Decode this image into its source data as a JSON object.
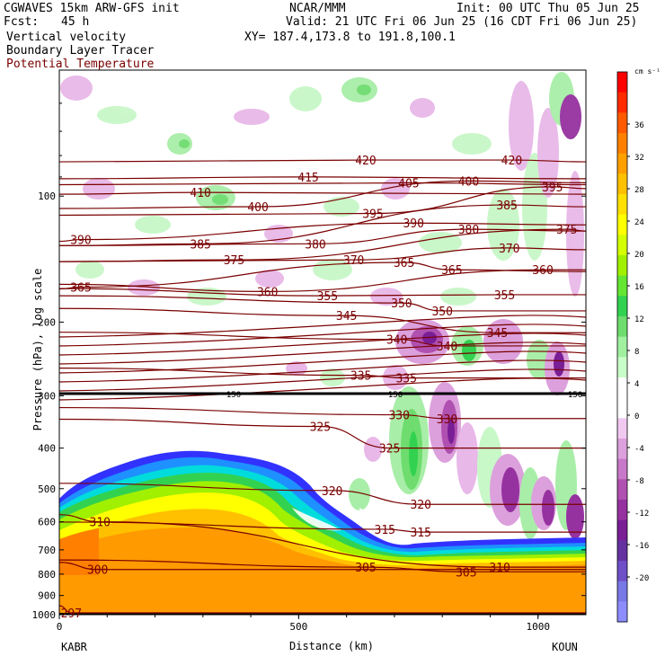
{
  "header": {
    "model": "CGWAVES 15km ARW-GFS init",
    "org": "NCAR/MMM",
    "init": "Init: 00 UTC Thu 05 Jun 25",
    "fcst_label": "Fcst:",
    "fcst_value": "45 h",
    "valid": "Valid: 21 UTC Fri 06 Jun 25 (16 CDT Fri 06 Jun 25)",
    "field1": "Vertical velocity",
    "xy": "XY= 187.4,173.8 to 191.8,100.1",
    "field2": "Boundary Layer Tracer",
    "field3": "Potential Temperature",
    "field3_color": "#7a0000"
  },
  "chart_data": {
    "type": "heatmap",
    "ylabel": "Pressure (hPa), log scale",
    "xlabel": "Distance (km)",
    "y_scale": "log",
    "ylim": [
      1000,
      50
    ],
    "xlim": [
      0,
      1100
    ],
    "x_ticks": [
      0,
      500,
      1000
    ],
    "y_ticks": [
      100,
      200,
      300,
      400,
      500,
      600,
      700,
      800,
      900,
      1000
    ],
    "left_endpoint": "KABR",
    "right_endpoint": "KOUN",
    "colorbar": {
      "unit": "cm s⁻¹",
      "labels": [
        "36",
        "32",
        "28",
        "24",
        "20",
        "16",
        "12",
        "8",
        "4",
        "0",
        "-4",
        "-8",
        "-12",
        "-16",
        "-20"
      ],
      "colors": [
        "#ff0000",
        "#ff2a00",
        "#ff5a00",
        "#ff7f00",
        "#ffa000",
        "#ffc000",
        "#ffe000",
        "#ffff00",
        "#d4ff00",
        "#a0f000",
        "#64e632",
        "#32d250",
        "#6edc6e",
        "#a0f0a0",
        "#c8ffc8",
        "#ffffff",
        "#ffffff",
        "#f0c8f0",
        "#dca0dc",
        "#c878c8",
        "#b050b0",
        "#9632a0",
        "#7a1e96",
        "#6432a0",
        "#6e50c8",
        "#7878e6",
        "#8c8cff"
      ]
    },
    "theta_contours": {
      "color": "#7a0000",
      "labels": [
        {
          "value": "420",
          "x": 640,
          "p": 82
        },
        {
          "value": "420",
          "x": 945,
          "p": 82
        },
        {
          "value": "415",
          "x": 520,
          "p": 90
        },
        {
          "value": "410",
          "x": 295,
          "p": 98
        },
        {
          "value": "405",
          "x": 730,
          "p": 93
        },
        {
          "value": "400",
          "x": 415,
          "p": 106
        },
        {
          "value": "400",
          "x": 855,
          "p": 92
        },
        {
          "value": "395",
          "x": 655,
          "p": 110
        },
        {
          "value": "395",
          "x": 1030,
          "p": 95
        },
        {
          "value": "390",
          "x": 45,
          "p": 127
        },
        {
          "value": "390",
          "x": 740,
          "p": 116
        },
        {
          "value": "385",
          "x": 295,
          "p": 130
        },
        {
          "value": "385",
          "x": 935,
          "p": 105
        },
        {
          "value": "380",
          "x": 535,
          "p": 130
        },
        {
          "value": "380",
          "x": 855,
          "p": 120
        },
        {
          "value": "375",
          "x": 365,
          "p": 142
        },
        {
          "value": "375",
          "x": 1060,
          "p": 120
        },
        {
          "value": "370",
          "x": 615,
          "p": 142
        },
        {
          "value": "370",
          "x": 940,
          "p": 133
        },
        {
          "value": "365",
          "x": 45,
          "p": 165
        },
        {
          "value": "365",
          "x": 720,
          "p": 144
        },
        {
          "value": "365",
          "x": 820,
          "p": 150
        },
        {
          "value": "360",
          "x": 435,
          "p": 169
        },
        {
          "value": "360",
          "x": 1010,
          "p": 150
        },
        {
          "value": "355",
          "x": 560,
          "p": 173
        },
        {
          "value": "355",
          "x": 930,
          "p": 172
        },
        {
          "value": "350",
          "x": 715,
          "p": 180
        },
        {
          "value": "350",
          "x": 800,
          "p": 188
        },
        {
          "value": "345",
          "x": 600,
          "p": 193
        },
        {
          "value": "345",
          "x": 915,
          "p": 212
        },
        {
          "value": "340",
          "x": 705,
          "p": 220
        },
        {
          "value": "340",
          "x": 810,
          "p": 228
        },
        {
          "value": "335",
          "x": 630,
          "p": 268
        },
        {
          "value": "335",
          "x": 725,
          "p": 272
        },
        {
          "value": "330",
          "x": 710,
          "p": 333
        },
        {
          "value": "330",
          "x": 810,
          "p": 340
        },
        {
          "value": "325",
          "x": 545,
          "p": 355
        },
        {
          "value": "325",
          "x": 690,
          "p": 400
        },
        {
          "value": "320",
          "x": 570,
          "p": 505
        },
        {
          "value": "320",
          "x": 755,
          "p": 545
        },
        {
          "value": "315",
          "x": 680,
          "p": 625
        },
        {
          "value": "315",
          "x": 755,
          "p": 635
        },
        {
          "value": "310",
          "x": 85,
          "p": 600
        },
        {
          "value": "310",
          "x": 920,
          "p": 770
        },
        {
          "value": "305",
          "x": 640,
          "p": 770
        },
        {
          "value": "305",
          "x": 850,
          "p": 790
        },
        {
          "value": "300",
          "x": 80,
          "p": 780
        },
        {
          "value": "297",
          "x": 25,
          "p": 990
        }
      ],
      "tropopause_label": "150"
    }
  }
}
